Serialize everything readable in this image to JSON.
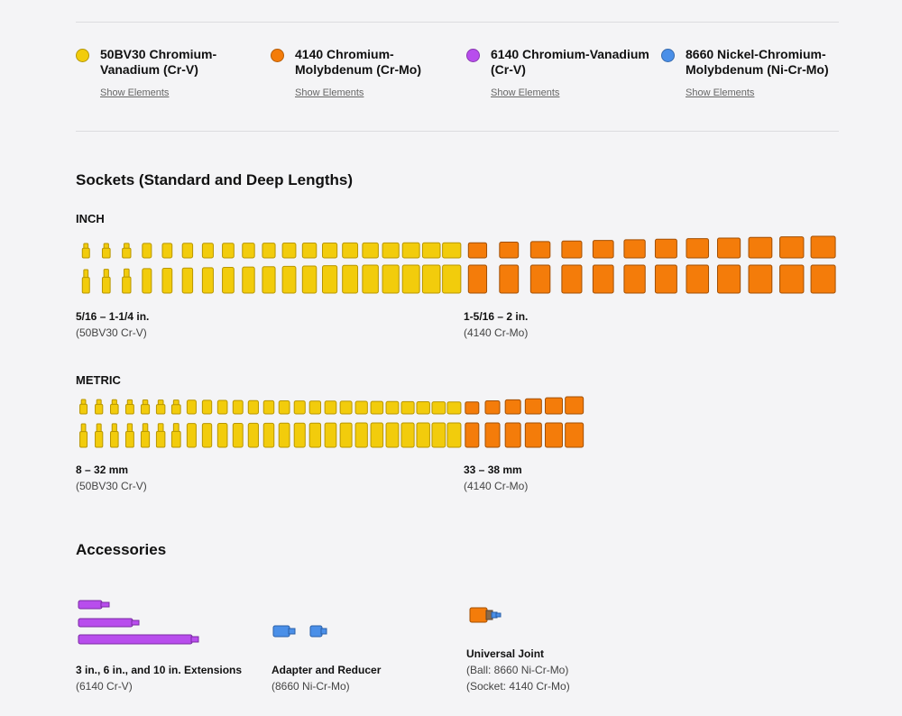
{
  "legend": [
    {
      "name": "50BV30 Chromium-Vanadium (Cr-V)",
      "color": "#f2cc0c",
      "link": "Show Elements"
    },
    {
      "name": "4140 Chromium-Molybdenum (Cr-Mo)",
      "color": "#f47c0a",
      "link": "Show Elements"
    },
    {
      "name": "6140 Chromium-Vanadium (Cr-V)",
      "color": "#b84ded",
      "link": "Show Elements"
    },
    {
      "name": "8660 Nickel-Chromium-Molybdenum (Ni-Cr-Mo)",
      "color": "#4a8fe8",
      "link": "Show Elements"
    }
  ],
  "sockets": {
    "title": "Sockets (Standard and Deep Lengths)",
    "inch": {
      "label": "INCH",
      "groups": [
        {
          "count": 19,
          "material": "50BV30",
          "range": "5/16 – 1-1/4 in.",
          "note": "(50BV30 Cr-V)"
        },
        {
          "count": 12,
          "material": "4140",
          "range": "1-5/16 – 2 in.",
          "note": "(4140 Cr-Mo)"
        }
      ]
    },
    "metric": {
      "label": "METRIC",
      "groups": [
        {
          "count": 25,
          "material": "50BV30",
          "range": "8 – 32 mm",
          "note": "(50BV30 Cr-V)"
        },
        {
          "count": 6,
          "material": "4140",
          "range": "33 – 38 mm",
          "note": "(4140 Cr-Mo)"
        }
      ]
    }
  },
  "accessories": {
    "title": "Accessories",
    "items": [
      {
        "name": "3 in., 6 in., and 10 in. Extensions",
        "lines": [
          "(6140 Cr-V)"
        ]
      },
      {
        "name": "Adapter and Reducer",
        "lines": [
          "(8660 Ni-Cr-Mo)"
        ]
      },
      {
        "name": "Universal Joint",
        "lines": [
          "(Ball: 8660 Ni-Cr-Mo)",
          "(Socket: 4140 Cr-Mo)"
        ]
      }
    ]
  }
}
